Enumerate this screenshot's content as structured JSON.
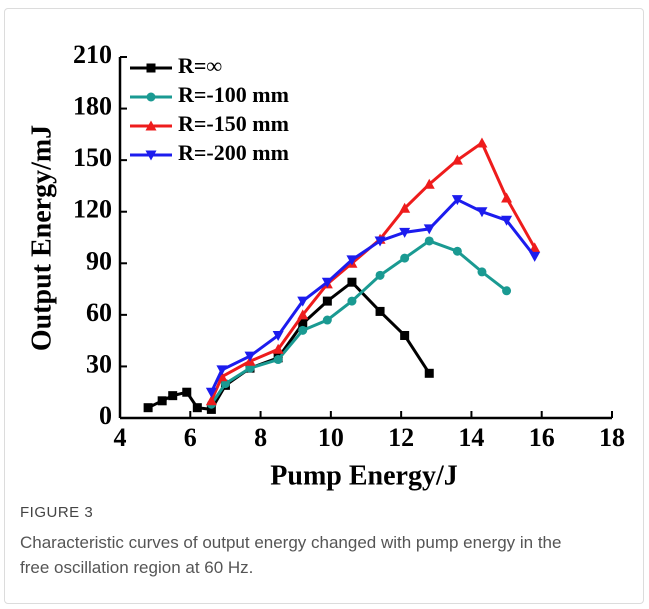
{
  "chart_data": {
    "type": "line",
    "xlabel": "Pump Energy/J",
    "ylabel": "Output Energy/mJ",
    "xlim": [
      4,
      18
    ],
    "xticks": [
      4,
      6,
      8,
      10,
      12,
      14,
      16,
      18
    ],
    "ylim": [
      0,
      210
    ],
    "yticks": [
      0,
      30,
      60,
      90,
      120,
      150,
      180,
      210
    ],
    "legend": "top-left",
    "series": [
      {
        "name": "R=∞",
        "color": "#000000",
        "marker": "square",
        "x": [
          4.8,
          5.2,
          5.5,
          5.9,
          6.2,
          6.6,
          7.0,
          7.7,
          8.5,
          9.2,
          9.9,
          10.6,
          11.4,
          12.1,
          12.8
        ],
        "values": [
          6,
          10,
          13,
          15,
          6,
          5,
          19,
          29,
          35,
          55,
          68,
          79,
          62,
          48,
          26
        ]
      },
      {
        "name": "R=-100 mm",
        "color": "#1a9a92",
        "marker": "circle",
        "x": [
          6.6,
          7.0,
          7.7,
          8.5,
          9.2,
          9.9,
          10.6,
          11.4,
          12.1,
          12.8,
          13.6,
          14.3,
          15.0
        ],
        "values": [
          8,
          20,
          29,
          34,
          51,
          57,
          68,
          83,
          93,
          103,
          97,
          85,
          74
        ]
      },
      {
        "name": "R=-150 mm",
        "color": "#ee1c1c",
        "marker": "triangle-up",
        "x": [
          6.6,
          6.9,
          7.7,
          8.5,
          9.2,
          9.9,
          10.6,
          11.4,
          12.1,
          12.8,
          13.6,
          14.3,
          15.0,
          15.8
        ],
        "values": [
          10,
          24,
          33,
          40,
          60,
          78,
          90,
          104,
          122,
          136,
          150,
          160,
          128,
          99
        ]
      },
      {
        "name": "R=-200 mm",
        "color": "#1c1cee",
        "marker": "triangle-down",
        "x": [
          6.6,
          6.9,
          7.7,
          8.5,
          9.2,
          9.9,
          10.6,
          11.4,
          12.1,
          12.8,
          13.6,
          14.3,
          15.0,
          15.8
        ],
        "values": [
          15,
          28,
          36,
          48,
          68,
          79,
          92,
          103,
          108,
          110,
          127,
          120,
          115,
          94
        ]
      }
    ]
  },
  "figure": {
    "label": "FIGURE 3",
    "caption": "Characteristic curves of output energy changed with pump energy in the free oscillation region at 60 Hz."
  }
}
